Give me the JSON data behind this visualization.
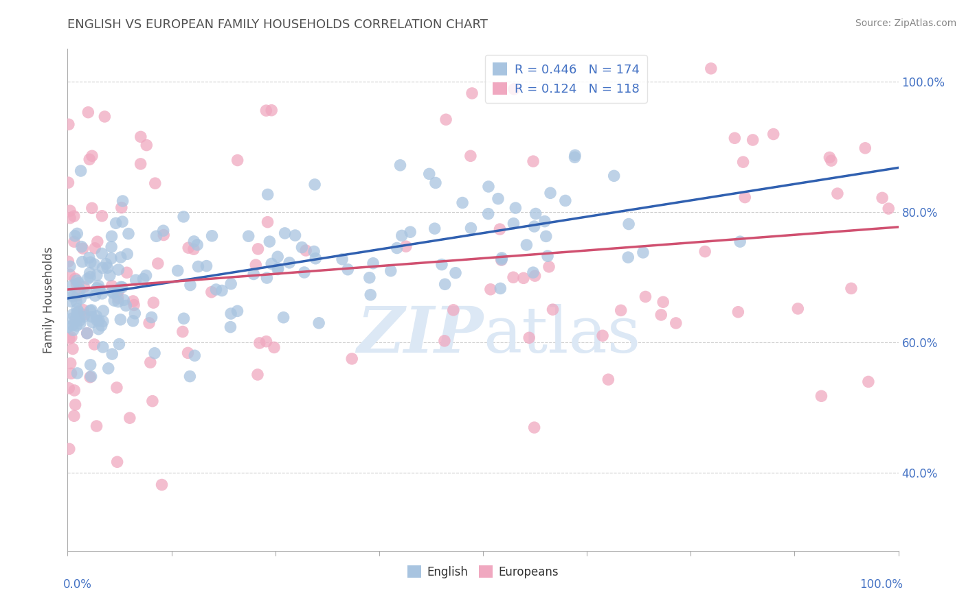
{
  "title": "ENGLISH VS EUROPEAN FAMILY HOUSEHOLDS CORRELATION CHART",
  "source": "Source: ZipAtlas.com",
  "ylabel": "Family Households",
  "xlim": [
    0.0,
    1.0
  ],
  "ylim": [
    0.28,
    1.05
  ],
  "y_ticks": [
    0.4,
    0.6,
    0.8,
    1.0
  ],
  "y_tick_labels": [
    "40.0%",
    "60.0%",
    "80.0%",
    "100.0%"
  ],
  "english_R": 0.446,
  "english_N": 174,
  "european_R": 0.124,
  "european_N": 118,
  "english_color": "#a8c4e0",
  "european_color": "#f0a8c0",
  "english_line_color": "#3060b0",
  "european_line_color": "#d05070",
  "grid_color": "#cccccc",
  "title_color": "#505050",
  "label_color": "#4472c4",
  "background_color": "#ffffff",
  "watermark_color": "#dce8f5",
  "english_seed": 12,
  "european_seed": 77
}
